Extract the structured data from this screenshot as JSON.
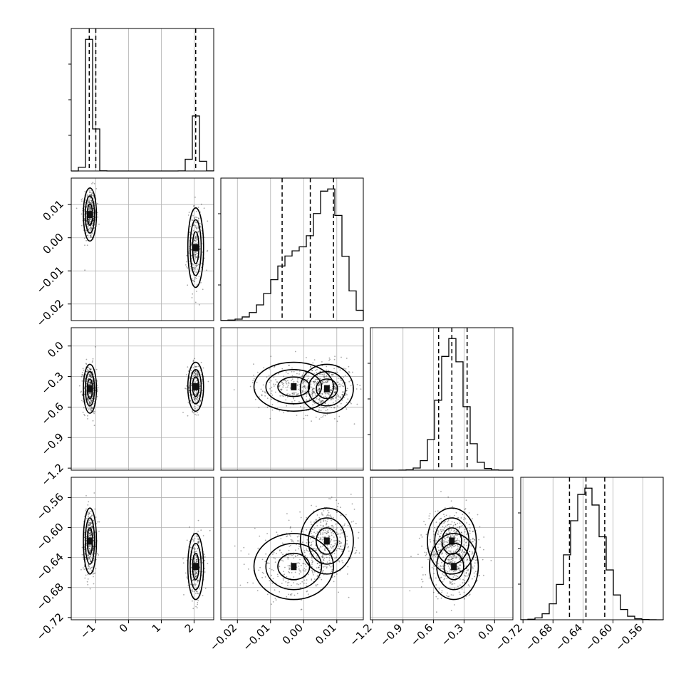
{
  "chart_data": {
    "type": "corner",
    "title": "",
    "params": [
      {
        "axis_ticks": [
          "−1",
          "0",
          "1",
          "2"
        ],
        "range": [
          -1.75,
          2.6
        ],
        "tick_values": [
          -1,
          0,
          1,
          2
        ],
        "modes": [
          {
            "mean": -1.15,
            "sd": 0.1,
            "weight": 0.7
          },
          {
            "mean": 2.05,
            "sd": 0.12,
            "weight": 0.3
          }
        ],
        "quantiles": [
          -1.2,
          -1.0,
          2.05
        ]
      },
      {
        "axis_ticks": [
          "−0.02",
          "−0.01",
          "0.00",
          "0.01"
        ],
        "range": [
          -0.025,
          0.018
        ],
        "tick_values": [
          -0.02,
          -0.01,
          0.0,
          0.01
        ],
        "modes": [
          {
            "mean": 0.008,
            "sd": 0.004,
            "weight": 0.55
          },
          {
            "mean": -0.003,
            "sd": 0.006,
            "weight": 0.45
          }
        ],
        "quantiles": [
          -0.0065,
          0.002,
          0.009
        ]
      },
      {
        "axis_ticks": [
          "−1.2",
          "−0.9",
          "−0.6",
          "−0.3",
          "0.0"
        ],
        "range": [
          -1.22,
          0.18
        ],
        "tick_values": [
          -1.2,
          -0.9,
          -0.6,
          -0.3,
          0.0
        ],
        "modes": [
          {
            "mean": -0.42,
            "sd": 0.12,
            "weight": 1.0
          }
        ],
        "quantiles": [
          -0.55,
          -0.42,
          -0.27
        ]
      },
      {
        "axis_ticks": [
          "−0.72",
          "−0.68",
          "−0.64",
          "−0.60",
          "−0.56"
        ],
        "range": [
          -0.723,
          -0.533
        ],
        "tick_values": [
          -0.72,
          -0.68,
          -0.64,
          -0.6,
          -0.56
        ],
        "modes": [
          {
            "mean": -0.635,
            "sd": 0.022,
            "weight": 1.0
          }
        ],
        "quantiles": [
          -0.658,
          -0.636,
          -0.611
        ]
      }
    ],
    "clusters": [
      {
        "p0": -1.18,
        "p1": 0.007,
        "p2": -0.42,
        "p3": -0.618
      },
      {
        "p0": 2.05,
        "p1": -0.003,
        "p2": -0.4,
        "p3": -0.652
      }
    ],
    "grid": true
  }
}
